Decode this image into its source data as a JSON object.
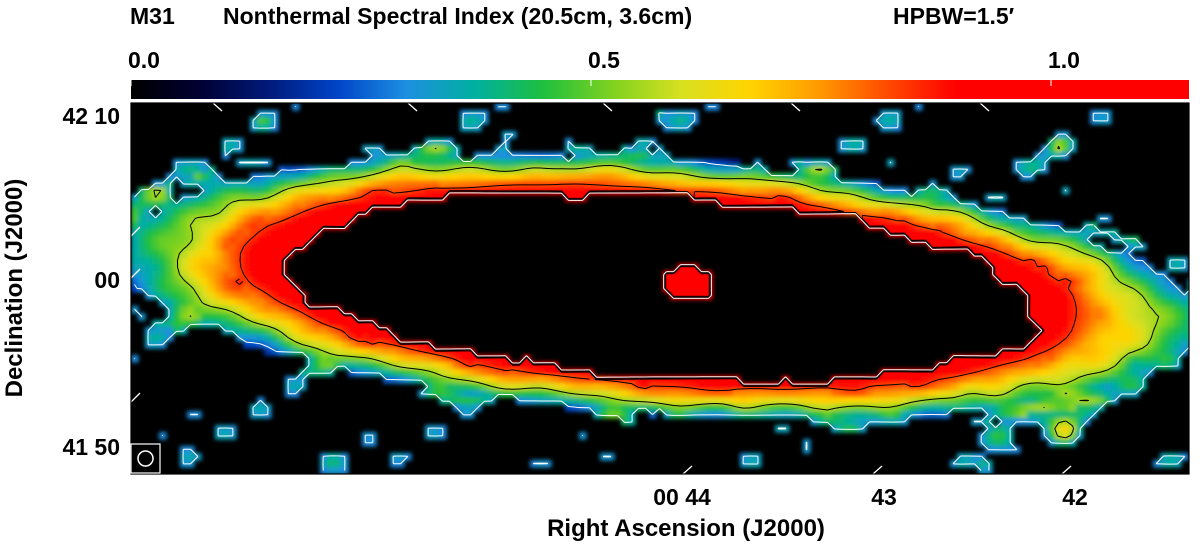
{
  "chart_data": {
    "type": "heatmap",
    "title": {
      "object": "M31",
      "quantity": "Nonthermal Spectral Index (20.5cm, 3.6cm)",
      "beam": "HPBW=1.5′"
    },
    "xlabel": "Right Ascension (J2000)",
    "ylabel": "Declination (J2000)",
    "colorbar": {
      "range": [
        0.0,
        1.15
      ],
      "tick_values": [
        0.0,
        0.5,
        1.0
      ],
      "tick_labels": [
        "0.0",
        "0.5",
        "1.0"
      ],
      "colormap": [
        "#000000",
        "#000033",
        "#001a7a",
        "#0044c8",
        "#1d8fe0",
        "#00b0a0",
        "#1fbf3f",
        "#7fd21f",
        "#d8e020",
        "#ffd400",
        "#ff9a00",
        "#ff4a00",
        "#ff0000"
      ]
    },
    "x_ticks": [
      {
        "label": "00 44",
        "ra_min": 44
      },
      {
        "label": "43",
        "ra_min": 43
      },
      {
        "label": "42",
        "ra_min": 42
      }
    ],
    "y_ticks": [
      {
        "label": "42 10",
        "dec_arcmin": 10
      },
      {
        "label": "00",
        "dec_arcmin": 0
      },
      {
        "label": "41 50",
        "dec_arcmin": -10
      }
    ],
    "features": {
      "ring_spectral_index_range": [
        0.5,
        1.1
      ],
      "center_spectral_index": 1.1,
      "outer_patches_spectral_index": [
        0.0,
        0.4
      ]
    }
  }
}
